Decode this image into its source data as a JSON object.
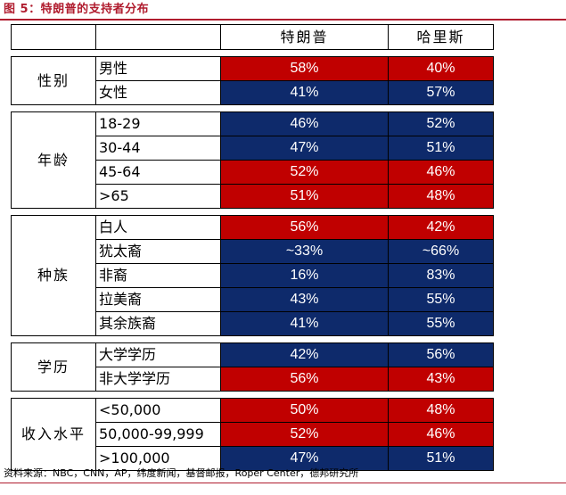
{
  "figure": {
    "title": "图 5：特朗普的支持者分布",
    "source": "资料来源：NBC，CNN，AP，纬度新闻，基督邮报，Roper Center，德邦研究所"
  },
  "colors": {
    "red": "#c00000",
    "blue": "#0e2a6b",
    "accent": "#b01c2e"
  },
  "header": {
    "corner": "",
    "trump": "特朗普",
    "harris": "哈里斯"
  },
  "groups": [
    {
      "category": "性别",
      "rows": [
        {
          "label": "男性",
          "trump": "58%",
          "harris": "40%",
          "trump_color": "red",
          "harris_color": "red"
        },
        {
          "label": "女性",
          "trump": "41%",
          "harris": "57%",
          "trump_color": "blue",
          "harris_color": "blue"
        }
      ]
    },
    {
      "category": "年龄",
      "rows": [
        {
          "label": "18-29",
          "trump": "46%",
          "harris": "52%",
          "trump_color": "blue",
          "harris_color": "blue"
        },
        {
          "label": "30-44",
          "trump": "47%",
          "harris": "51%",
          "trump_color": "blue",
          "harris_color": "blue"
        },
        {
          "label": "45-64",
          "trump": "52%",
          "harris": "46%",
          "trump_color": "red",
          "harris_color": "red"
        },
        {
          "label": ">65",
          "trump": "51%",
          "harris": "48%",
          "trump_color": "red",
          "harris_color": "red"
        }
      ]
    },
    {
      "category": "种族",
      "rows": [
        {
          "label": "白人",
          "trump": "56%",
          "harris": "42%",
          "trump_color": "red",
          "harris_color": "red"
        },
        {
          "label": "犹太裔",
          "trump": "~33%",
          "harris": "~66%",
          "trump_color": "blue",
          "harris_color": "blue"
        },
        {
          "label": "非裔",
          "trump": "16%",
          "harris": "83%",
          "trump_color": "blue",
          "harris_color": "blue"
        },
        {
          "label": "拉美裔",
          "trump": "43%",
          "harris": "55%",
          "trump_color": "blue",
          "harris_color": "blue"
        },
        {
          "label": "其余族裔",
          "trump": "41%",
          "harris": "55%",
          "trump_color": "blue",
          "harris_color": "blue"
        }
      ]
    },
    {
      "category": "学历",
      "rows": [
        {
          "label": "大学学历",
          "trump": "42%",
          "harris": "56%",
          "trump_color": "blue",
          "harris_color": "blue"
        },
        {
          "label": "非大学学历",
          "trump": "56%",
          "harris": "43%",
          "trump_color": "red",
          "harris_color": "red"
        }
      ]
    },
    {
      "category": "收入水平",
      "rows": [
        {
          "label": "<50,000",
          "trump": "50%",
          "harris": "48%",
          "trump_color": "red",
          "harris_color": "red"
        },
        {
          "label": "50,000-99,999",
          "trump": "52%",
          "harris": "46%",
          "trump_color": "red",
          "harris_color": "red"
        },
        {
          "label": ">100,000",
          "trump": "47%",
          "harris": "51%",
          "trump_color": "blue",
          "harris_color": "blue"
        }
      ]
    }
  ]
}
